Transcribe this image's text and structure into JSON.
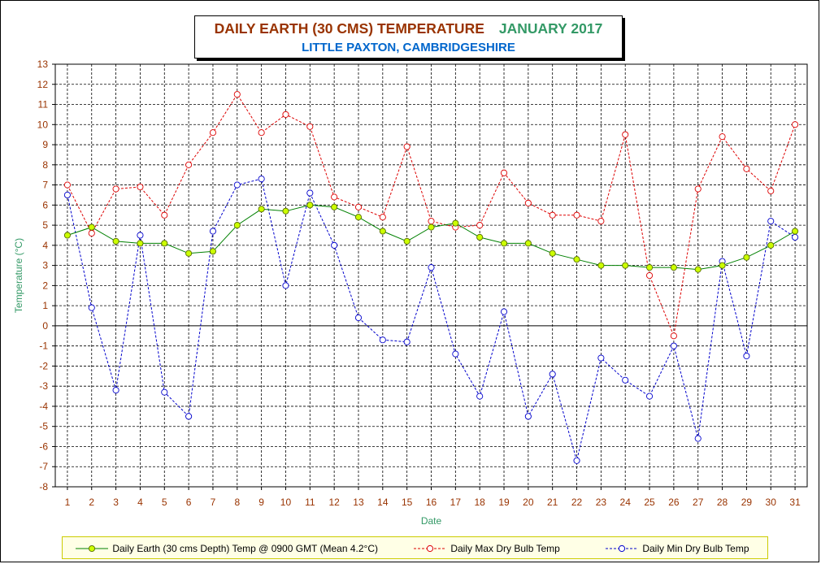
{
  "title": "DAILY EARTH (30 CMS) TEMPERATURE",
  "title_month": "JANUARY 2017",
  "subtitle": "LITTLE PAXTON, CAMBRIDGESHIRE",
  "colors": {
    "title": "#993300",
    "month": "#339966",
    "subtitle": "#0066cc",
    "earth_line": "#008000",
    "earth_marker": "#ccff00",
    "max": "#dd0000",
    "min": "#0000cc",
    "tick_label": "#993300",
    "axis_label": "#339966"
  },
  "legend": {
    "earth": "Daily Earth (30 cms Depth) Temp @ 0900 GMT (Mean 4.2°C)",
    "max": "Daily Max Dry Bulb Temp",
    "min": "Daily Min Dry Bulb Temp"
  },
  "chart_data": {
    "type": "line",
    "title": "DAILY EARTH (30 CMS) TEMPERATURE   JANUARY 2017",
    "subtitle": "LITTLE PAXTON, CAMBRIDGESHIRE",
    "xlabel": "Date",
    "ylabel": "Temperature (°C)",
    "ylim": [
      -8,
      13
    ],
    "yticks": [
      13,
      12,
      11,
      10,
      9,
      8,
      7,
      6,
      5,
      4,
      3,
      2,
      1,
      0,
      -1,
      -2,
      -3,
      -4,
      -5,
      -6,
      -7,
      -8
    ],
    "grid": true,
    "legend_position": "bottom",
    "x": [
      1,
      2,
      3,
      4,
      5,
      6,
      7,
      8,
      9,
      10,
      11,
      12,
      13,
      14,
      15,
      16,
      17,
      18,
      19,
      20,
      21,
      22,
      23,
      24,
      25,
      26,
      27,
      28,
      29,
      30,
      31
    ],
    "series": [
      {
        "name": "Daily Earth (30 cms Depth) Temp @ 0900 GMT (Mean 4.2°C)",
        "style": "solid",
        "values": [
          4.5,
          4.9,
          4.2,
          4.1,
          4.1,
          3.6,
          3.7,
          5.0,
          5.8,
          5.7,
          6.0,
          5.9,
          5.4,
          4.7,
          4.2,
          4.9,
          5.1,
          4.4,
          4.1,
          4.1,
          3.6,
          3.3,
          3.0,
          3.0,
          2.9,
          2.9,
          2.8,
          3.0,
          3.4,
          4.0,
          4.7
        ]
      },
      {
        "name": "Daily Max Dry Bulb Temp",
        "style": "dashed",
        "values": [
          7.0,
          4.6,
          6.8,
          6.9,
          5.5,
          8.0,
          9.6,
          11.5,
          9.6,
          10.5,
          9.9,
          6.4,
          5.9,
          5.4,
          8.9,
          5.2,
          4.9,
          5.0,
          7.6,
          6.1,
          5.5,
          5.5,
          5.2,
          9.5,
          2.5,
          -0.5,
          6.8,
          9.4,
          7.8,
          6.7,
          10.0
        ]
      },
      {
        "name": "Daily Min Dry Bulb Temp",
        "style": "dashed",
        "values": [
          6.5,
          0.9,
          -3.2,
          4.5,
          -3.3,
          -4.5,
          4.7,
          7.0,
          7.3,
          2.0,
          6.6,
          4.0,
          0.4,
          -0.7,
          -0.8,
          2.9,
          -1.4,
          -3.5,
          0.7,
          -4.5,
          -2.4,
          -6.7,
          -1.6,
          -2.7,
          -3.5,
          -1.0,
          -5.6,
          3.2,
          -1.5,
          5.2,
          4.4
        ]
      }
    ]
  }
}
